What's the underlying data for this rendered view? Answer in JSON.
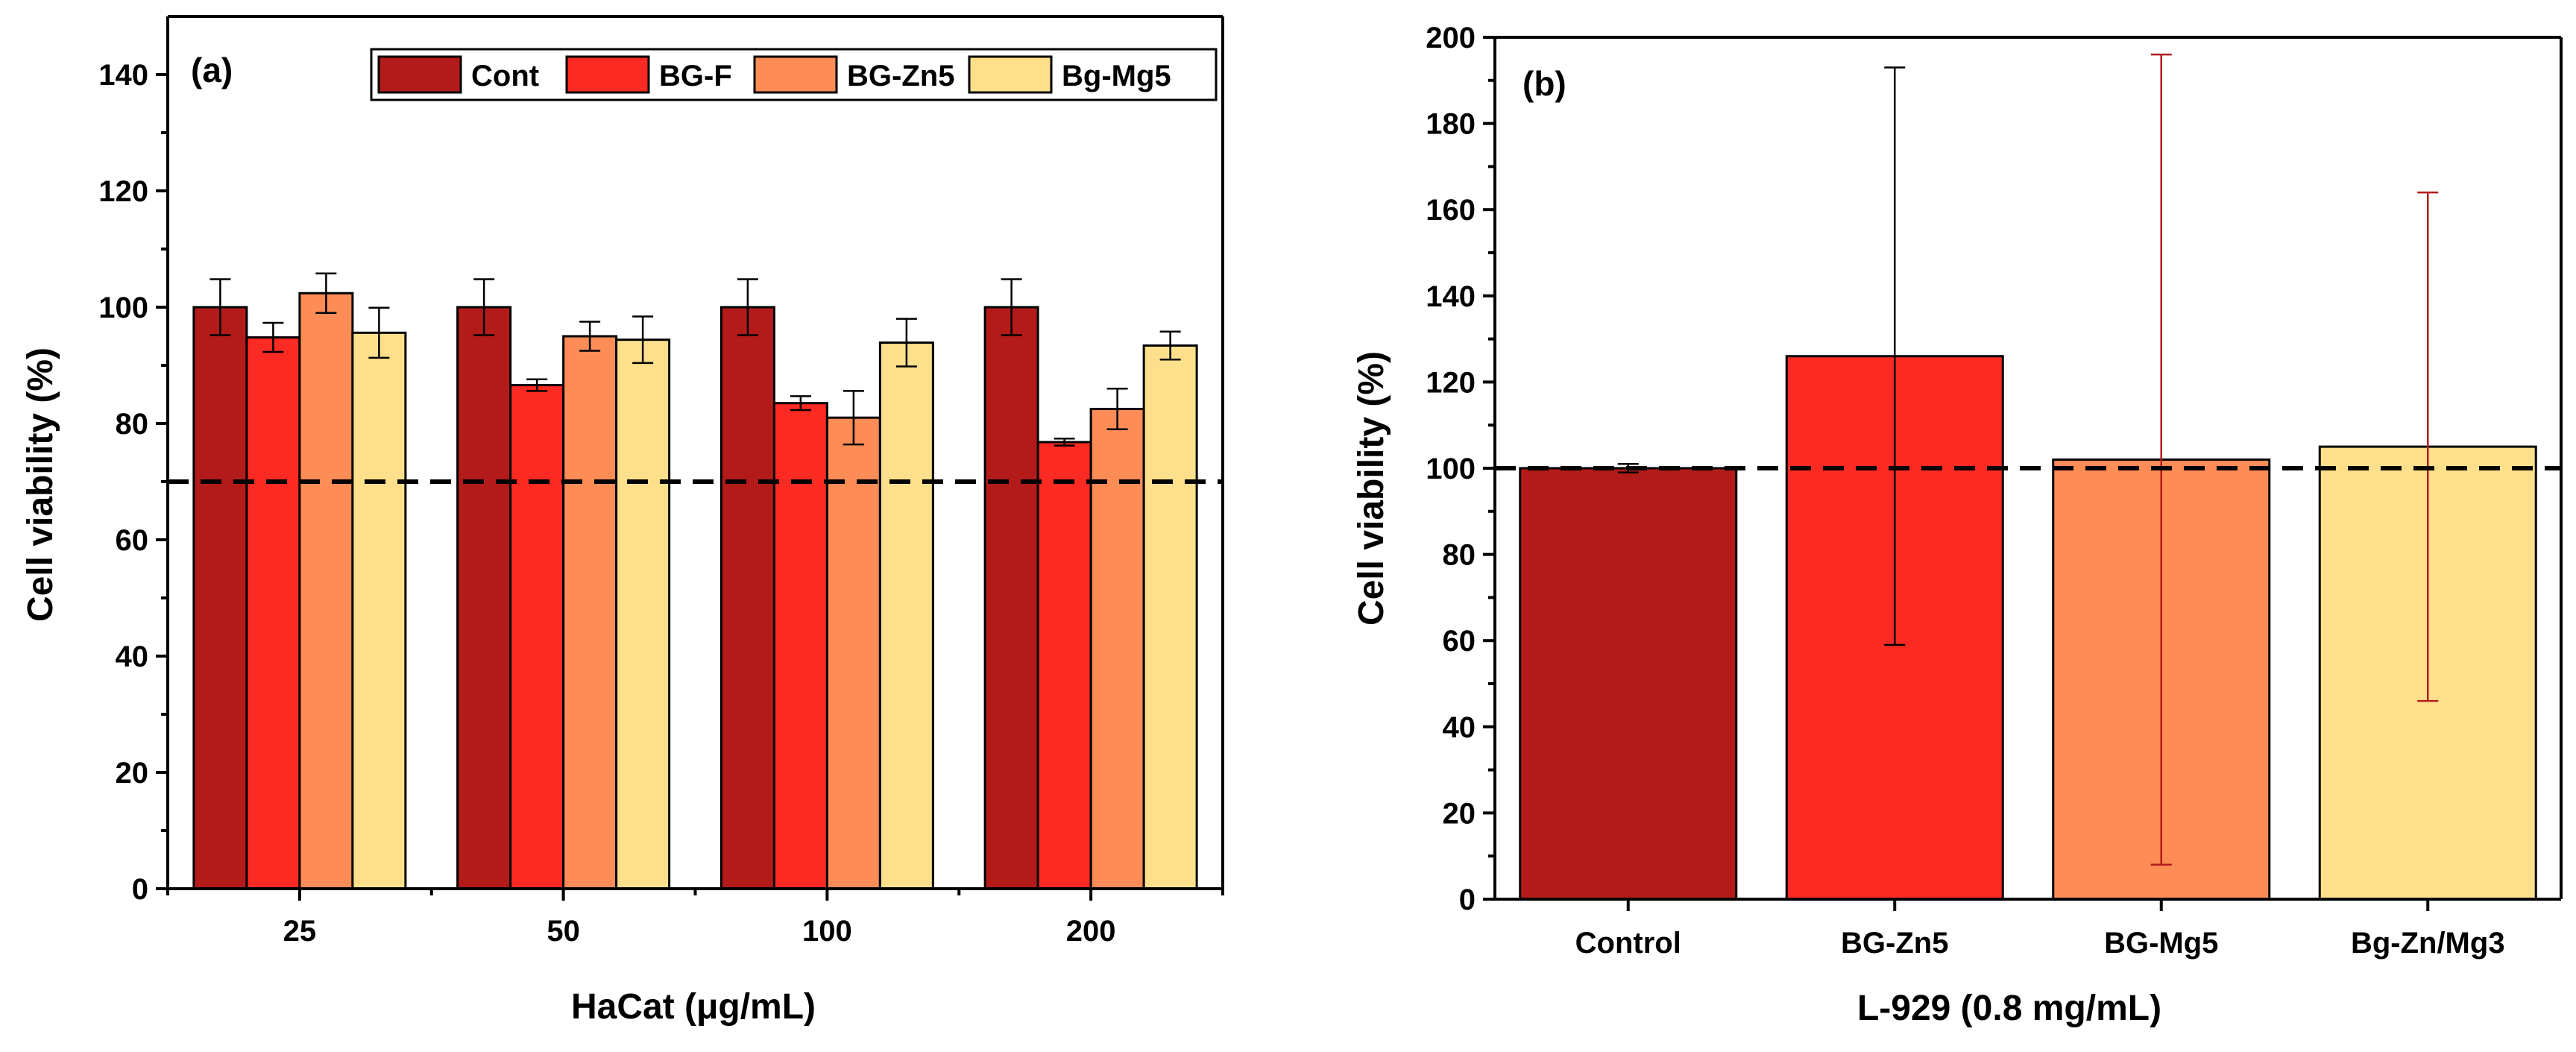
{
  "chart_data": [
    {
      "type": "bar",
      "panel_label": "(a)",
      "xlabel": "HaCat (μg/mL)",
      "ylabel": "Cell viability (%)",
      "ylim": [
        0,
        150
      ],
      "yticks": [
        0,
        20,
        40,
        60,
        80,
        100,
        120,
        140
      ],
      "categories": [
        "25",
        "50",
        "100",
        "200"
      ],
      "reference_line": 70,
      "legend_position": "top-right",
      "series": [
        {
          "name": "Cont",
          "color": "#b31b1b",
          "values": [
            100,
            100,
            100,
            100
          ],
          "errors": [
            4.8,
            4.8,
            4.8,
            4.8
          ]
        },
        {
          "name": "BG-F",
          "color": "#fb2a22",
          "values": [
            94.8,
            86.6,
            83.5,
            76.8
          ],
          "errors": [
            2.5,
            1.0,
            1.2,
            0.6
          ]
        },
        {
          "name": "BG-Zn5",
          "color": "#fd8c56",
          "values": [
            102.4,
            95.0,
            81.0,
            82.5
          ],
          "errors": [
            3.4,
            2.5,
            4.6,
            3.5
          ]
        },
        {
          "name": "Bg-Mg5",
          "color": "#fee08c",
          "values": [
            95.6,
            94.4,
            93.9,
            93.4
          ],
          "errors": [
            4.3,
            4.0,
            4.1,
            2.4
          ]
        }
      ]
    },
    {
      "type": "bar",
      "panel_label": "(b)",
      "xlabel": "L-929 (0.8 mg/mL)",
      "ylabel": "Cell viability (%)",
      "ylim": [
        0,
        200
      ],
      "yticks": [
        0,
        20,
        40,
        60,
        80,
        100,
        120,
        140,
        160,
        180,
        200
      ],
      "categories": [
        "Control",
        "BG-Zn5",
        "BG-Mg5",
        "Bg-Zn/Mg3"
      ],
      "reference_line": 100,
      "series": [
        {
          "name": "L-929",
          "values": [
            100,
            126,
            102,
            105
          ],
          "errors": [
            1,
            67,
            94,
            59
          ],
          "colors": [
            "#b31b1b",
            "#fb2a22",
            "#fd8c56",
            "#fee08c"
          ],
          "error_colors": [
            "#000000",
            "#000000",
            "#b31b1b",
            "#b31b1b"
          ]
        }
      ]
    }
  ]
}
